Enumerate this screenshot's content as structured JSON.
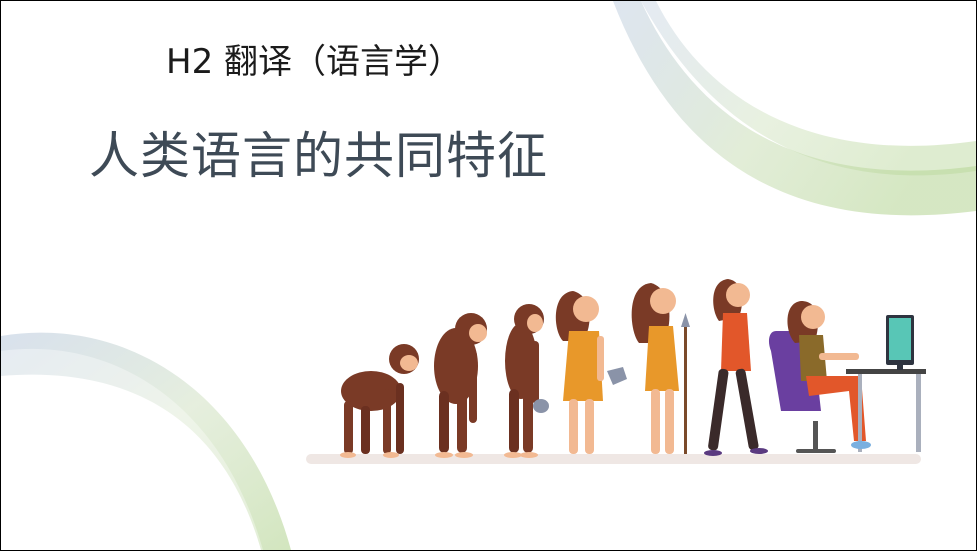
{
  "slide": {
    "subtitle": "H2 翻译（语言学）",
    "title": "人类语言的共同特征"
  },
  "illustration": {
    "stages": [
      "monkey",
      "ape",
      "hominid",
      "caveman-with-stone",
      "cavewoman-with-spear",
      "modern-woman-walking",
      "woman-at-computer"
    ],
    "icon": "human-evolution-icon"
  },
  "colors": {
    "swoosh_green": "#b9d79a",
    "swoosh_blue": "#a9bcd6",
    "title": "#3e4a56",
    "skin": "#f2b992",
    "fur": "#7a3a26",
    "hide": "#e8982a",
    "shirt": "#e2572a",
    "chair": "#6a3fa0",
    "ground": "#efe7e4"
  }
}
